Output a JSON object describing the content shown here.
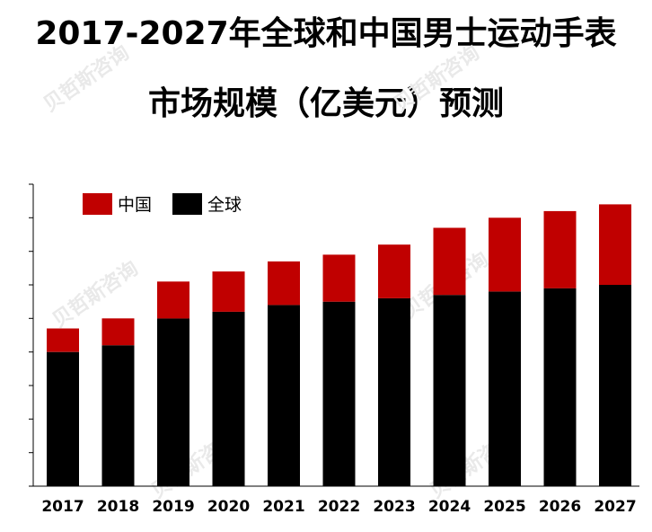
{
  "chart_data": {
    "type": "bar",
    "stacked": true,
    "title": "2017-2027年全球和中国男士运动手表",
    "subtitle": "市场规模（亿美元）预测",
    "categories": [
      "2017",
      "2018",
      "2019",
      "2020",
      "2021",
      "2022",
      "2023",
      "2024",
      "2025",
      "2026",
      "2027"
    ],
    "series": [
      {
        "name": "全球",
        "color": "#000000",
        "values": [
          4.0,
          4.2,
          5.0,
          5.2,
          5.4,
          5.5,
          5.6,
          5.7,
          5.8,
          5.9,
          6.0
        ]
      },
      {
        "name": "中国",
        "color": "#c00000",
        "values": [
          0.7,
          0.8,
          1.1,
          1.2,
          1.3,
          1.4,
          1.6,
          2.0,
          2.2,
          2.3,
          2.4
        ]
      }
    ],
    "legend_order": [
      "中国",
      "全球"
    ],
    "legend_position": "top-left",
    "ylim": [
      0,
      9
    ],
    "y_tick_step": 1,
    "y_tick_labels": false,
    "grid": false
  },
  "watermark_text": "贝哲斯咨询"
}
